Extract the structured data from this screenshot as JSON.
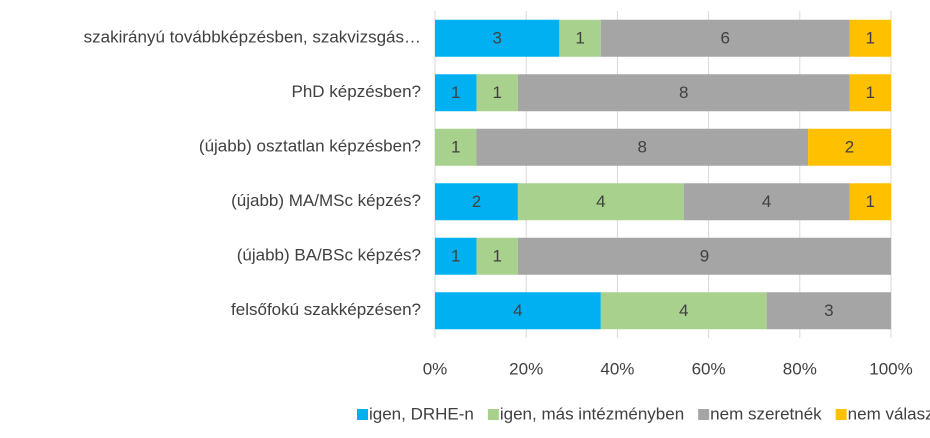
{
  "chart_data": {
    "type": "bar",
    "orientation": "horizontal",
    "stacking": "percent",
    "categories": [
      "szakirányú továbbképzésben, szakvizsgás…",
      "PhD képzésben?",
      "(újabb) osztatlan képzésben?",
      "(újabb) MA/MSc képzés?",
      "(újabb) BA/BSc képzés?",
      "felsőfokú szakképzésen?"
    ],
    "series": [
      {
        "name": "igen, DRHE-n",
        "color": "#00b0f0",
        "values": [
          3,
          1,
          null,
          2,
          1,
          4
        ]
      },
      {
        "name": "igen, más intézményben",
        "color": "#a9d18e",
        "values": [
          1,
          1,
          1,
          4,
          1,
          4
        ]
      },
      {
        "name": "nem szeretnék",
        "color": "#a5a5a5",
        "values": [
          6,
          8,
          8,
          4,
          9,
          3
        ]
      },
      {
        "name": "nem válaszolok",
        "color": "#ffc000",
        "values": [
          1,
          1,
          2,
          1,
          null,
          null
        ]
      }
    ],
    "xlim": [
      0,
      100
    ],
    "xticks": [
      {
        "value": 0,
        "label": "0%"
      },
      {
        "value": 20,
        "label": "20%"
      },
      {
        "value": 40,
        "label": "40%"
      },
      {
        "value": 60,
        "label": "60%"
      },
      {
        "value": 80,
        "label": "80%"
      },
      {
        "value": 100,
        "label": "100%"
      }
    ],
    "grid": true,
    "legend": "bottom"
  }
}
